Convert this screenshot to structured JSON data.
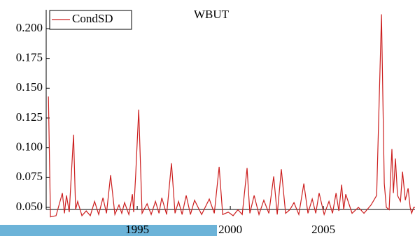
{
  "chart_data": {
    "type": "line",
    "title": "WBUT",
    "x": [
      1990.23,
      1990.34,
      1990.64,
      1990.98,
      1991.09,
      1991.2,
      1991.35,
      1991.58,
      1991.69,
      1991.8,
      1992.03,
      1992.26,
      1992.48,
      1992.71,
      1992.93,
      1993.16,
      1993.35,
      1993.57,
      1993.8,
      1994.02,
      1994.17,
      1994.32,
      1994.55,
      1994.74,
      1994.81,
      1994.92,
      1995.08,
      1995.26,
      1995.53,
      1995.75,
      1995.98,
      1996.17,
      1996.32,
      1996.58,
      1996.84,
      1997.03,
      1997.22,
      1997.41,
      1997.63,
      1997.86,
      1998.08,
      1998.46,
      1998.87,
      1999.14,
      1999.4,
      1999.59,
      1999.89,
      2000.15,
      2000.41,
      2000.64,
      2000.9,
      2001.05,
      2001.28,
      2001.54,
      2001.8,
      2002.07,
      2002.33,
      2002.52,
      2002.74,
      2002.97,
      2003.2,
      2003.42,
      2003.68,
      2003.95,
      2004.17,
      2004.4,
      2004.59,
      2004.77,
      2005.04,
      2005.3,
      2005.49,
      2005.68,
      2005.83,
      2005.98,
      2006.09,
      2006.2,
      2006.54,
      2006.88,
      2007.18,
      2007.56,
      2007.86,
      2008.12,
      2008.27,
      2008.38,
      2008.53,
      2008.68,
      2008.76,
      2008.87,
      2008.98,
      2009.14,
      2009.25,
      2009.4,
      2009.55,
      2009.66,
      2009.74,
      2009.85,
      2009.92
    ],
    "series": [
      {
        "name": "CondSD",
        "color": "#cc1f1f",
        "values": [
          0.143,
          0.042,
          0.043,
          0.062,
          0.045,
          0.06,
          0.046,
          0.111,
          0.048,
          0.055,
          0.043,
          0.047,
          0.043,
          0.055,
          0.044,
          0.058,
          0.045,
          0.077,
          0.044,
          0.052,
          0.045,
          0.054,
          0.044,
          0.061,
          0.046,
          0.078,
          0.132,
          0.045,
          0.053,
          0.044,
          0.055,
          0.045,
          0.058,
          0.044,
          0.087,
          0.045,
          0.055,
          0.044,
          0.06,
          0.044,
          0.056,
          0.044,
          0.057,
          0.045,
          0.084,
          0.044,
          0.046,
          0.043,
          0.048,
          0.044,
          0.083,
          0.045,
          0.06,
          0.044,
          0.056,
          0.045,
          0.076,
          0.044,
          0.082,
          0.045,
          0.048,
          0.054,
          0.044,
          0.07,
          0.045,
          0.057,
          0.045,
          0.062,
          0.044,
          0.055,
          0.045,
          0.062,
          0.047,
          0.069,
          0.048,
          0.061,
          0.045,
          0.05,
          0.045,
          0.052,
          0.06,
          0.212,
          0.07,
          0.05,
          0.048,
          0.099,
          0.062,
          0.091,
          0.06,
          0.055,
          0.08,
          0.056,
          0.066,
          0.05,
          0.045,
          0.05,
          0.05
        ]
      }
    ],
    "xlim": [
      1990.11,
      2009.92
    ],
    "xticks": [
      1995,
      2000,
      2005
    ],
    "ylim": [
      0.045,
      0.215
    ],
    "yticks": [
      {
        "value": 0.05,
        "label": "0.050"
      },
      {
        "value": 0.075,
        "label": "0.075"
      },
      {
        "value": 0.1,
        "label": "0.100"
      },
      0.125,
      {
        "value": 0.15,
        "label": "0.150"
      },
      0.175,
      {
        "value": 0.2,
        "label": "0.200"
      }
    ],
    "legend": "top-left"
  }
}
